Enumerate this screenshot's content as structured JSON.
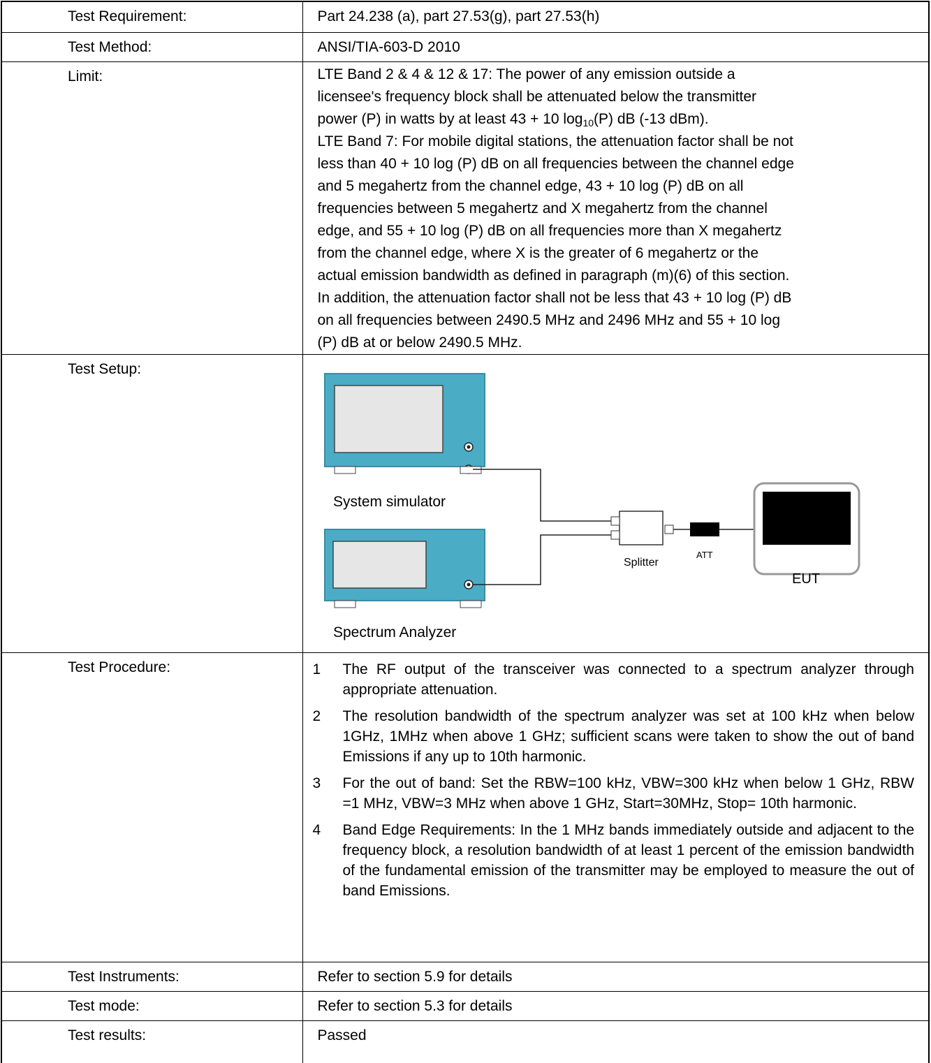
{
  "rows": [
    {
      "label": "Test Requirement:",
      "value": "Part 24.238 (a), part 27.53(g), part 27.53(h)"
    },
    {
      "label": "Test Method:",
      "value": "ANSI/TIA-603-D 2010"
    }
  ],
  "limit": {
    "label": "Limit:",
    "lines": [
      "LTE Band 2 & 4 & 12 & 17: The power of any emission outside a",
      "licensee's frequency block shall be attenuated below the transmitter",
      {
        "text": "power (P) in watts by at least 43 + 10 log",
        "sub": "10",
        "tail": "(P) dB (-13 dBm)."
      },
      "LTE Band 7: For mobile digital stations, the attenuation factor shall be not",
      "less than 40 + 10 log (P) dB on all frequencies between the channel edge",
      "and 5 megahertz from the channel edge, 43 + 10 log (P) dB on all",
      "frequencies between 5 megahertz and X megahertz from the channel",
      "edge, and 55 + 10 log (P) dB on all frequencies more than X megahertz",
      "from the channel edge, where X is the greater of 6 megahertz or the",
      "actual emission bandwidth as defined in paragraph (m)(6) of this section.",
      "In addition, the attenuation factor shall not be less that 43 + 10 log (P) dB",
      "on all frequencies between 2490.5 MHz and 2496 MHz and 55 + 10 log",
      "(P) dB at or below 2490.5 MHz."
    ]
  },
  "setup": {
    "label": "Test Setup:",
    "diagram": {
      "simulator": "System simulator",
      "analyzer": "Spectrum Analyzer",
      "splitter": "Splitter",
      "att": "ATT",
      "eut": "EUT"
    }
  },
  "procedure": {
    "label": "Test Procedure:",
    "items": [
      {
        "num": "1",
        "text": "The RF output of the transceiver was connected to a spectrum analyzer through appropriate attenuation."
      },
      {
        "num": "2",
        "text": "The resolution bandwidth of the spectrum analyzer was set at 100 kHz when below 1GHz, 1MHz when above 1 GHz; sufficient scans were taken to show the out of band Emissions if any up to 10th harmonic."
      },
      {
        "num": "3",
        "text": "For the out of band: Set the RBW=100 kHz, VBW=300 kHz when below 1 GHz, RBW =1 MHz, VBW=3 MHz when above 1 GHz, Start=30MHz, Stop= 10th harmonic."
      },
      {
        "num": "4",
        "text": "Band Edge Requirements: In the 1 MHz bands immediately outside and adjacent to the frequency block, a resolution bandwidth of at least 1 percent of the emission bandwidth of the fundamental emission of the transmitter may be employed to measure the out of band Emissions."
      }
    ]
  },
  "tail_rows": [
    {
      "label": "Test Instruments:",
      "value": "Refer to section 5.9 for details"
    },
    {
      "label": "Test mode:",
      "value": "Refer to section 5.3 for details"
    },
    {
      "label": "Test results:",
      "value": "Passed"
    }
  ]
}
